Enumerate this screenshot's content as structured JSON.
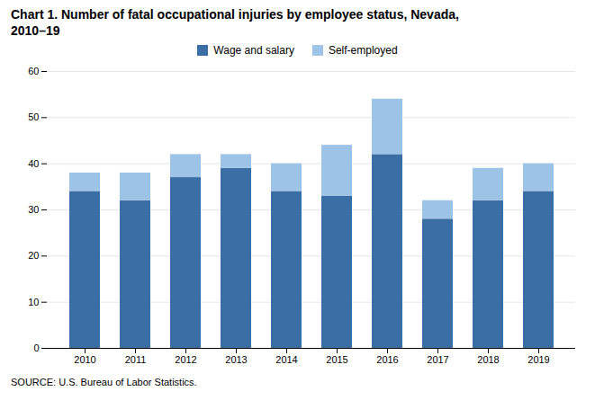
{
  "chart_data": {
    "type": "bar",
    "title": "Chart 1. Number of fatal occupational injuries by employee status, Nevada,\n2010–19",
    "source": "SOURCE: U.S. Bureau of Labor Statistics.",
    "categories": [
      "2010",
      "2011",
      "2012",
      "2013",
      "2014",
      "2015",
      "2016",
      "2017",
      "2018",
      "2019"
    ],
    "series": [
      {
        "name": "Wage and salary",
        "color": "#3A6EA5",
        "values": [
          34,
          32,
          37,
          39,
          34,
          33,
          42,
          28,
          32,
          34
        ]
      },
      {
        "name": "Self-employed",
        "color": "#9DC3E6",
        "values": [
          4,
          6,
          5,
          3,
          6,
          11,
          12,
          4,
          7,
          6
        ]
      }
    ],
    "stacked": true,
    "ylim": [
      0,
      60
    ],
    "yticks": [
      0,
      10,
      20,
      30,
      40,
      50,
      60
    ],
    "grid": true,
    "legend": "top"
  }
}
